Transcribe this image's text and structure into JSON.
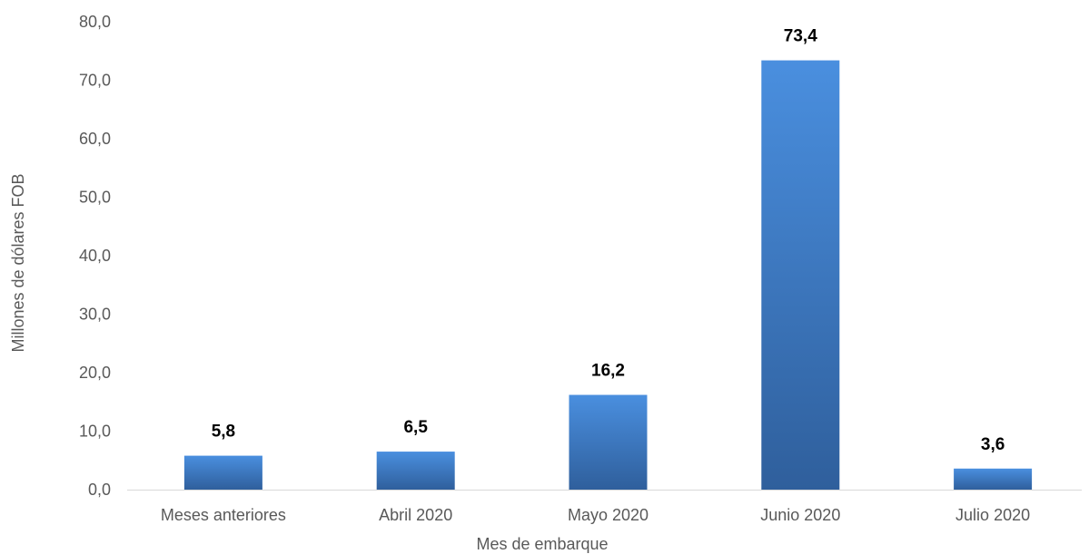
{
  "chart_data": {
    "type": "bar",
    "title": "",
    "xlabel": "Mes de embarque",
    "ylabel": "Millones de dólares FOB",
    "categories": [
      "Meses anteriores",
      "Abril 2020",
      "Mayo 2020",
      "Junio 2020",
      "Julio 2020"
    ],
    "values": [
      5.8,
      6.5,
      16.2,
      73.4,
      3.6
    ],
    "value_labels": [
      "5,8",
      "6,5",
      "16,2",
      "73,4",
      "3,6"
    ],
    "ylim": [
      0,
      80
    ],
    "yticks": [
      0,
      10,
      20,
      30,
      40,
      50,
      60,
      70,
      80
    ],
    "ytick_labels": [
      "0,0",
      "10,0",
      "20,0",
      "30,0",
      "40,0",
      "50,0",
      "60,0",
      "70,0",
      "80,0"
    ],
    "grid": false,
    "legend": "none",
    "colors": {
      "bar_top": "#4a8fdf",
      "bar_bottom": "#2f5f9c",
      "baseline": "#d9d9d9",
      "text": "#595959",
      "data_label": "#000000"
    }
  }
}
